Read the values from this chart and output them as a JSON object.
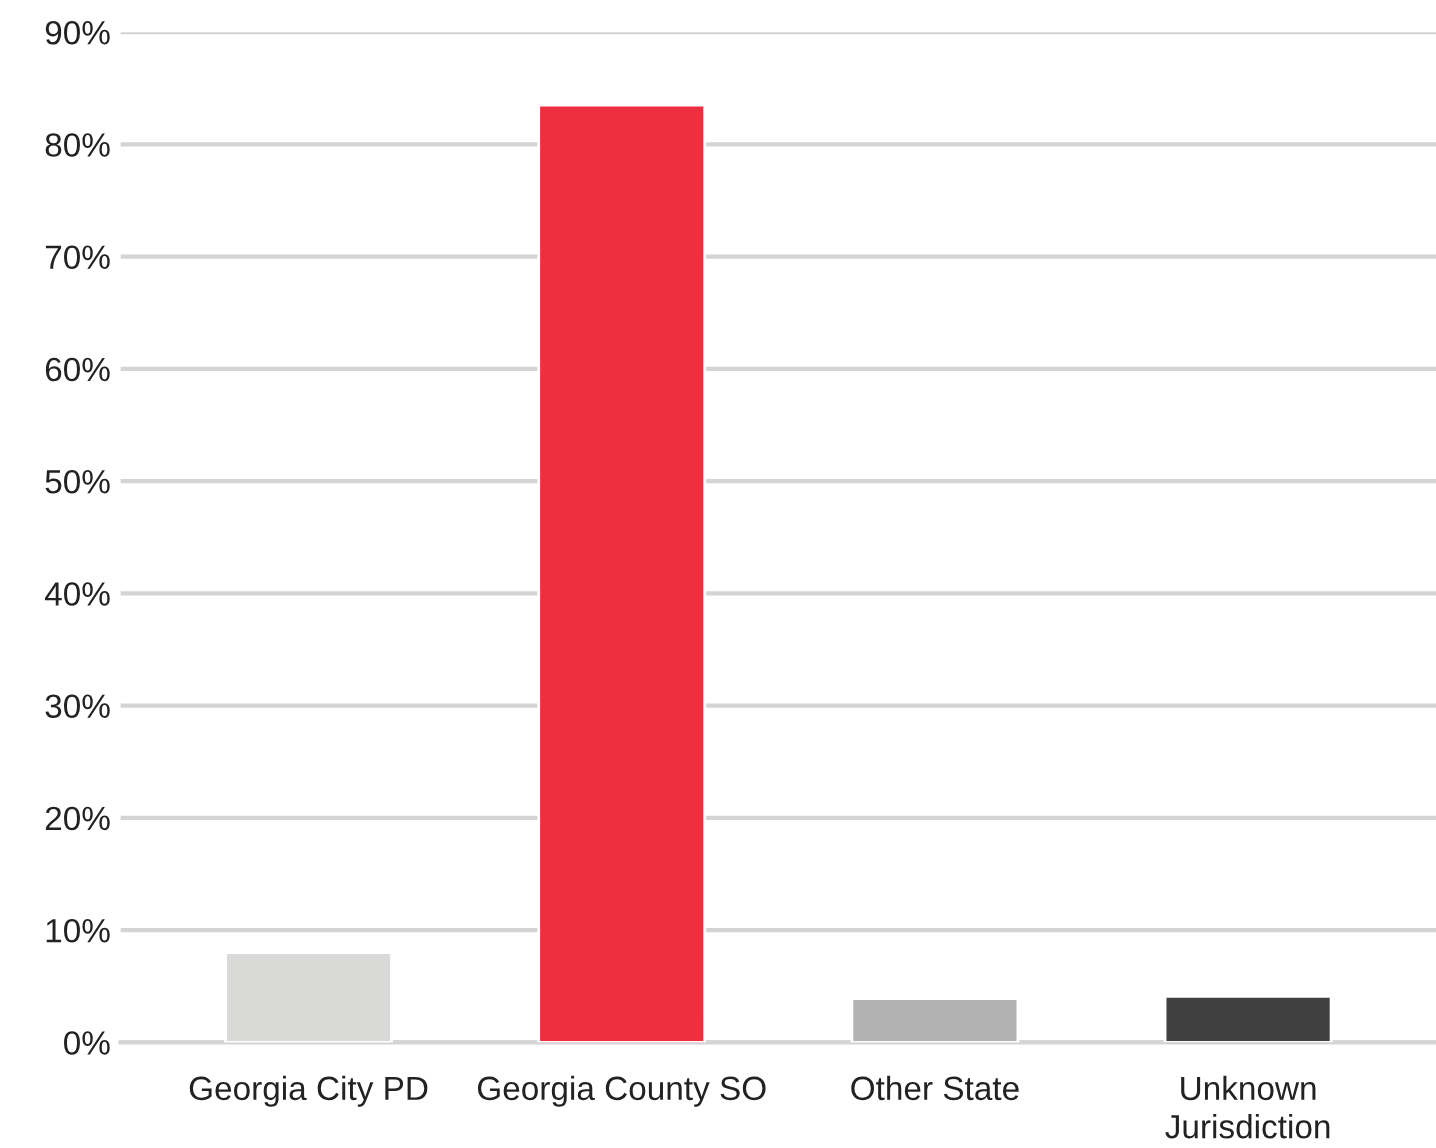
{
  "chart_data": {
    "type": "bar",
    "categories": [
      "Georgia City PD",
      "Georgia County SO",
      "Other State",
      "Unknown\nJurisdiction"
    ],
    "values": [
      8.0,
      83.5,
      3.9,
      4.1
    ],
    "colors": [
      "#d9d9d8",
      "#ee2f3f",
      "#b2b1b1",
      "#404040"
    ],
    "ylim": [
      0,
      90
    ],
    "yticks": [
      {
        "value": 0,
        "label": "0%"
      },
      {
        "value": 10,
        "label": "10%"
      },
      {
        "value": 20,
        "label": "20%"
      },
      {
        "value": 30,
        "label": "30%"
      },
      {
        "value": 40,
        "label": "40%"
      },
      {
        "value": 50,
        "label": "50%"
      },
      {
        "value": 60,
        "label": "60%"
      },
      {
        "value": 70,
        "label": "70%"
      },
      {
        "value": 80,
        "label": "80%"
      },
      {
        "value": 90,
        "label": "90%"
      }
    ],
    "grid": "y"
  }
}
